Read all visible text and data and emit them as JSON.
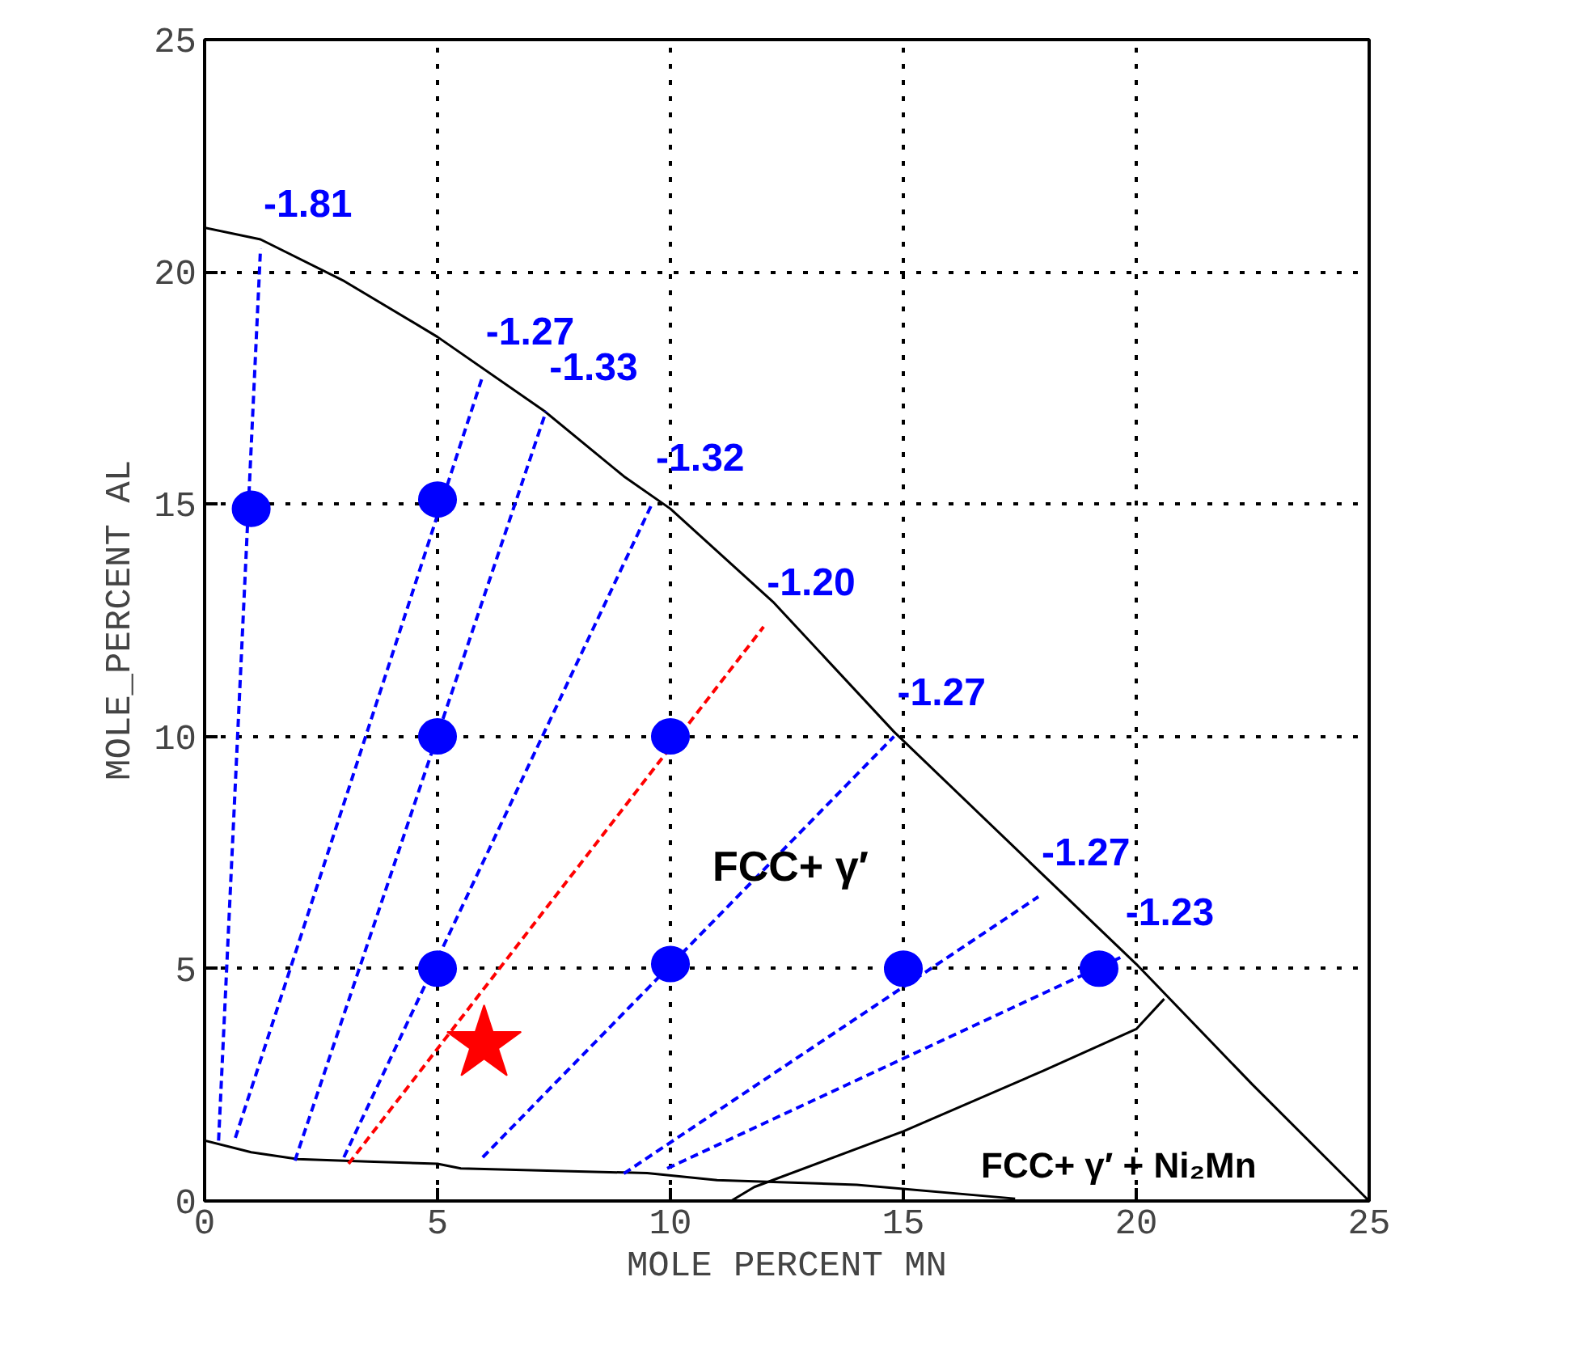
{
  "chart_data": {
    "type": "line",
    "xlabel": "MOLE PERCENT MN",
    "ylabel": "MOLE_PERCENT AL",
    "xlim": [
      0,
      25
    ],
    "ylim": [
      0,
      25
    ],
    "xticks": [
      0,
      5,
      10,
      15,
      20,
      25
    ],
    "yticks": [
      0,
      5,
      10,
      15,
      20,
      25
    ],
    "grid": true,
    "series": [
      {
        "color": "#000000",
        "line_style": "solid",
        "x": [
          0,
          1.2,
          3,
          5,
          7.3,
          9,
          10,
          12.2,
          14.8,
          17.5,
          20,
          22.5,
          25
        ],
        "values": [
          20.95,
          20.7,
          19.8,
          18.6,
          17.0,
          15.6,
          14.9,
          12.9,
          10.1,
          7.5,
          5.1,
          2.5,
          0
        ]
      },
      {
        "color": "#000000",
        "line_style": "solid",
        "x": [
          0,
          1,
          2,
          3.5,
          5,
          5.5,
          9.5,
          11,
          14,
          17.4
        ],
        "values": [
          1.3,
          1.05,
          0.9,
          0.85,
          0.8,
          0.7,
          0.6,
          0.45,
          0.35,
          0.05
        ]
      },
      {
        "color": "#000000",
        "line_style": "solid",
        "x": [
          11.3,
          11.8,
          15,
          18,
          20,
          20.6
        ],
        "values": [
          0,
          0.3,
          1.5,
          2.8,
          3.7,
          4.35
        ]
      },
      {
        "color": "#0000ff",
        "line_style": "dashed",
        "x": [
          0.3,
          1.2
        ],
        "values": [
          1.3,
          20.5
        ]
      },
      {
        "color": "#0000ff",
        "line_style": "dashed",
        "x": [
          0.66,
          5.97
        ],
        "values": [
          1.36,
          17.76
        ]
      },
      {
        "color": "#0000ff",
        "line_style": "dashed",
        "x": [
          1.94,
          7.33
        ],
        "values": [
          0.87,
          17.0
        ]
      },
      {
        "color": "#0000ff",
        "line_style": "dashed",
        "x": [
          2.99,
          9.62
        ],
        "values": [
          0.94,
          15.04
        ]
      },
      {
        "color": "#ff0000",
        "line_style": "dashed",
        "x": [
          3.09,
          12.0
        ],
        "values": [
          0.8,
          12.36
        ]
      },
      {
        "color": "#0000ff",
        "line_style": "dashed",
        "x": [
          5.97,
          14.8
        ],
        "values": [
          0.94,
          10.0
        ]
      },
      {
        "color": "#0000ff",
        "line_style": "dashed",
        "x": [
          9.0,
          17.9
        ],
        "values": [
          0.59,
          6.55
        ]
      },
      {
        "color": "#0000ff",
        "line_style": "dashed",
        "x": [
          9.93,
          19.7
        ],
        "values": [
          0.7,
          5.26
        ]
      },
      {
        "type": "scatter",
        "color": "#0000ff",
        "marker": "circle",
        "x": [
          1,
          5,
          5,
          10,
          5,
          10,
          15,
          19.2
        ],
        "values": [
          14.9,
          15.1,
          10,
          10,
          5,
          5.1,
          5,
          5
        ]
      },
      {
        "type": "scatter",
        "color": "#ff0000",
        "marker": "star",
        "x": [
          6.0
        ],
        "values": [
          3.38
        ]
      }
    ],
    "annotations": [
      {
        "text": "-1.81",
        "x": 1.2,
        "y": 20.5
      },
      {
        "text": "-1.27",
        "x": 5.97,
        "y": 17.76
      },
      {
        "text": "-1.33",
        "x": 7.33,
        "y": 17.0
      },
      {
        "text": "-1.32",
        "x": 9.62,
        "y": 15.04
      },
      {
        "text": "-1.20",
        "x": 12.0,
        "y": 12.36
      },
      {
        "text": "-1.27",
        "x": 14.8,
        "y": 10.0
      },
      {
        "text": "-1.27",
        "x": 17.9,
        "y": 6.55
      },
      {
        "text": "-1.23",
        "x": 19.7,
        "y": 5.26
      },
      "FCC+ γ′",
      "FCC+ γ′ + Ni₂Mn"
    ]
  }
}
